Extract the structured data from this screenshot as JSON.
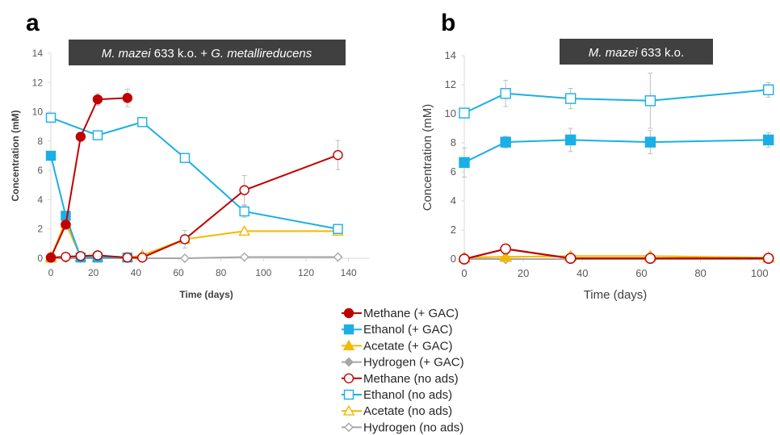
{
  "colors": {
    "methane": "#C00000",
    "ethanol": "#1AAFE6",
    "acetate": "#F5B800",
    "hydrogen": "#A6A6A6",
    "title_box": "#404040",
    "axis": "#D9D9D9",
    "error_bar": "#BFBFBF"
  },
  "legend": [
    {
      "label": "Methane (+ GAC)",
      "key": "methane",
      "marker": "circle",
      "filled": true
    },
    {
      "label": "Ethanol (+ GAC)",
      "key": "ethanol",
      "marker": "square",
      "filled": true
    },
    {
      "label": "Acetate (+ GAC)",
      "key": "acetate",
      "marker": "triangle",
      "filled": true
    },
    {
      "label": "Hydrogen (+ GAC)",
      "key": "hydrogen",
      "marker": "diamond",
      "filled": true
    },
    {
      "label": "Methane (no ads)",
      "key": "methane",
      "marker": "circle",
      "filled": false
    },
    {
      "label": "Ethanol (no ads)",
      "key": "ethanol",
      "marker": "square",
      "filled": false
    },
    {
      "label": "Acetate (no ads)",
      "key": "acetate",
      "marker": "triangle",
      "filled": false
    },
    {
      "label": "Hydrogen (no ads)",
      "key": "hydrogen",
      "marker": "diamond",
      "filled": false
    }
  ],
  "chart_data": [
    {
      "type": "line",
      "panel_label": "a",
      "title_italic": "M. mazei",
      "title_mid": " 633 k.o. + ",
      "title_italic2": "G. metallireducens",
      "xlabel": "Time (days)",
      "ylabel": "Concentration (mM)",
      "xlim": [
        0,
        150
      ],
      "ylim": [
        0,
        14
      ],
      "xticks": [
        0,
        20,
        40,
        60,
        80,
        100,
        120,
        140
      ],
      "yticks": [
        0,
        2,
        4,
        6,
        8,
        10,
        12,
        14
      ],
      "series": [
        {
          "name": "Hydrogen (+ GAC)",
          "key": "hydrogen",
          "marker": "diamond",
          "filled": true,
          "x": [
            0,
            7,
            14,
            22,
            36
          ],
          "y": [
            0.05,
            0.05,
            0.05,
            0.05,
            0.05
          ],
          "err": [
            0,
            0,
            0,
            0,
            0
          ]
        },
        {
          "name": "Hydrogen (no ads)",
          "key": "hydrogen",
          "marker": "diamond",
          "filled": false,
          "x": [
            0,
            7,
            14,
            22,
            36,
            43,
            63,
            91,
            135
          ],
          "y": [
            0.0,
            0.0,
            0.0,
            0.0,
            0.0,
            0.0,
            0.0,
            0.08,
            0.08
          ],
          "err": [
            0,
            0,
            0,
            0,
            0,
            0,
            0,
            0,
            0
          ]
        },
        {
          "name": "Acetate (no ads)",
          "key": "acetate",
          "marker": "triangle",
          "filled": false,
          "x": [
            0,
            7,
            14,
            22,
            36,
            43,
            63,
            91,
            135
          ],
          "y": [
            0.1,
            2.4,
            0.1,
            0.05,
            0.05,
            0.2,
            1.3,
            1.85,
            1.85
          ],
          "err": [
            0,
            0.2,
            0,
            0,
            0,
            0,
            0.3,
            0.2,
            0.2
          ]
        },
        {
          "name": "Acetate (+ GAC)",
          "key": "acetate",
          "marker": "triangle",
          "filled": true,
          "x": [
            0,
            7,
            14,
            22,
            36
          ],
          "y": [
            0.0,
            2.6,
            0.1,
            0.05,
            0.05
          ],
          "err": [
            0,
            0.2,
            0,
            0,
            0
          ]
        },
        {
          "name": "Ethanol (no ads)",
          "key": "ethanol",
          "marker": "square",
          "filled": false,
          "x": [
            0,
            22,
            43,
            63,
            91,
            135
          ],
          "y": [
            9.6,
            8.4,
            9.3,
            6.85,
            3.2,
            2.0
          ],
          "err": [
            0.2,
            0.2,
            0.3,
            0.3,
            0.4,
            0.2
          ]
        },
        {
          "name": "Ethanol (+ GAC)",
          "key": "ethanol",
          "marker": "square",
          "filled": true,
          "x": [
            0,
            7,
            14,
            22,
            36
          ],
          "y": [
            7.0,
            2.9,
            0.05,
            0.05,
            0.05
          ],
          "err": [
            0.1,
            0.2,
            0,
            0,
            0
          ]
        },
        {
          "name": "Methane (no ads)",
          "key": "methane",
          "marker": "circle",
          "filled": false,
          "x": [
            0,
            7,
            14,
            22,
            36,
            43,
            63,
            91,
            135
          ],
          "y": [
            0.05,
            0.1,
            0.15,
            0.2,
            0.05,
            0.05,
            1.3,
            4.65,
            7.05
          ],
          "err": [
            0,
            0,
            0,
            0,
            0,
            0,
            0.6,
            1.0,
            1.0
          ]
        },
        {
          "name": "Methane (+ GAC)",
          "key": "methane",
          "marker": "circle",
          "filled": true,
          "x": [
            0,
            7,
            14,
            22,
            36
          ],
          "y": [
            0.05,
            2.3,
            8.3,
            10.85,
            10.95
          ],
          "err": [
            0,
            0.3,
            0.3,
            0.4,
            0.6
          ]
        }
      ]
    },
    {
      "type": "line",
      "panel_label": "b",
      "title_italic": "M. mazei",
      "title_mid": " 633 k.o.",
      "title_italic2": "",
      "xlabel": "Time (days)",
      "ylabel": "Concentration (mM)",
      "xlim": [
        0,
        105
      ],
      "ylim": [
        0,
        14
      ],
      "xticks": [
        0,
        20,
        40,
        60,
        80,
        100
      ],
      "yticks": [
        0,
        2,
        4,
        6,
        8,
        10,
        12,
        14
      ],
      "series": [
        {
          "name": "Hydrogen (+ GAC)",
          "key": "hydrogen",
          "marker": "diamond",
          "filled": true,
          "x": [
            0,
            14,
            36,
            63,
            103
          ],
          "y": [
            0.0,
            0.0,
            0.0,
            0.0,
            0.0
          ],
          "err": [
            0,
            0,
            0,
            0,
            0
          ]
        },
        {
          "name": "Hydrogen (no ads)",
          "key": "hydrogen",
          "marker": "diamond",
          "filled": false,
          "x": [
            0,
            14,
            36,
            63,
            103
          ],
          "y": [
            0.0,
            0.0,
            0.0,
            0.0,
            0.0
          ],
          "err": [
            0,
            0,
            0,
            0,
            0
          ]
        },
        {
          "name": "Acetate (no ads)",
          "key": "acetate",
          "marker": "triangle",
          "filled": false,
          "x": [
            0,
            14,
            36,
            63,
            103
          ],
          "y": [
            0.1,
            0.15,
            0.2,
            0.2,
            0.1
          ],
          "err": [
            0,
            0,
            0,
            0,
            0
          ]
        },
        {
          "name": "Acetate (+ GAC)",
          "key": "acetate",
          "marker": "triangle",
          "filled": true,
          "x": [
            0,
            14,
            36,
            63,
            103
          ],
          "y": [
            0.1,
            0.15,
            0.2,
            0.2,
            0.1
          ],
          "err": [
            0,
            0,
            0,
            0,
            0
          ]
        },
        {
          "name": "Methane (+ GAC)",
          "key": "methane",
          "marker": "circle",
          "filled": true,
          "x": [
            0,
            14,
            36,
            63,
            103
          ],
          "y": [
            0.0,
            0.7,
            0.05,
            0.05,
            0.05
          ],
          "err": [
            0,
            0.1,
            0,
            0,
            0
          ]
        },
        {
          "name": "Methane (no ads)",
          "key": "methane",
          "marker": "circle",
          "filled": false,
          "x": [
            0,
            14,
            36,
            63,
            103
          ],
          "y": [
            0.0,
            0.7,
            0.05,
            0.05,
            0.05
          ],
          "err": [
            0,
            0.1,
            0,
            0,
            0
          ]
        },
        {
          "name": "Ethanol (+ GAC)",
          "key": "ethanol",
          "marker": "square",
          "filled": true,
          "x": [
            0,
            14,
            36,
            63,
            103
          ],
          "y": [
            6.65,
            8.05,
            8.2,
            8.05,
            8.2
          ],
          "err": [
            1.0,
            0.4,
            0.8,
            0.8,
            0.5
          ]
        },
        {
          "name": "Ethanol (no ads)",
          "key": "ethanol",
          "marker": "square",
          "filled": false,
          "x": [
            0,
            14,
            36,
            63,
            103
          ],
          "y": [
            10.05,
            11.4,
            11.05,
            10.9,
            11.65
          ],
          "err": [
            0.3,
            0.9,
            0.7,
            1.9,
            0.5
          ]
        }
      ]
    }
  ]
}
